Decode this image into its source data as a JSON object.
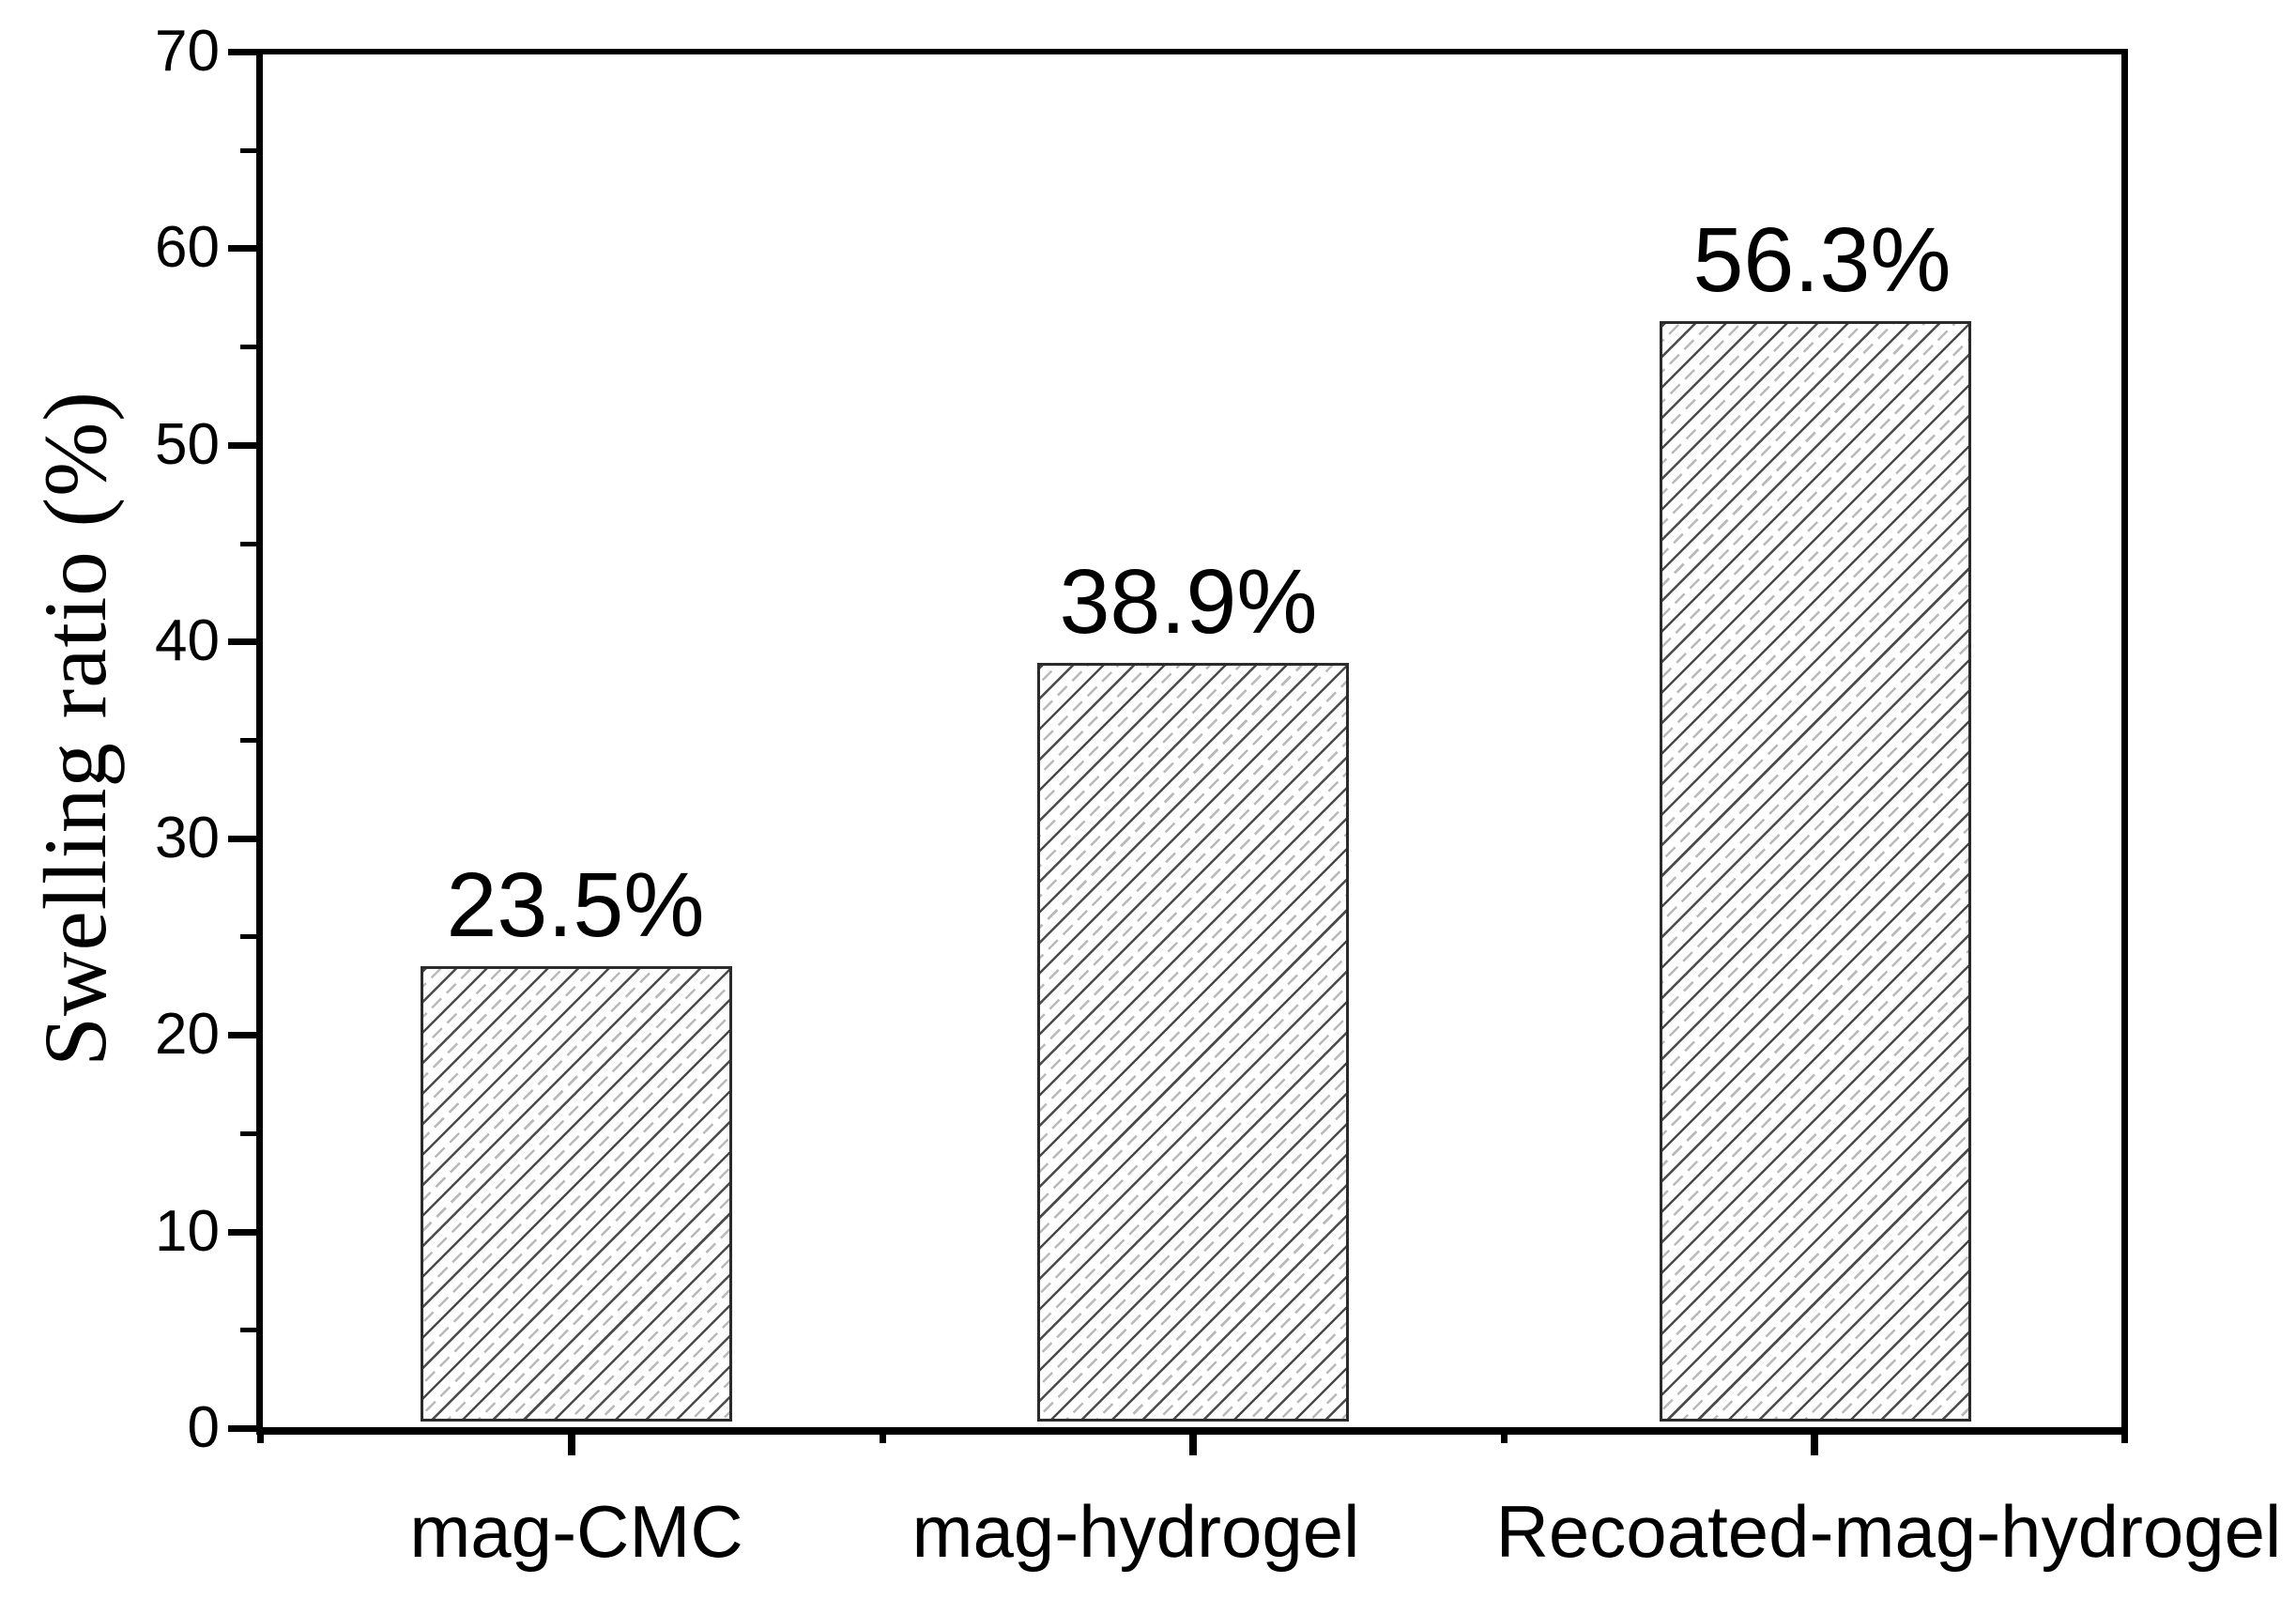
{
  "chart_data": {
    "type": "bar",
    "title": "",
    "categories": [
      "mag-CMC",
      "mag-hydrogel",
      "Recoated-mag-hydrogel"
    ],
    "values": [
      23.5,
      38.9,
      56.3
    ],
    "value_labels": [
      "23.5%",
      "38.9%",
      "56.3%"
    ],
    "ylabel": "Swelling ratio (%)",
    "xlabel": "",
    "ylim": [
      0,
      70
    ],
    "yticks": [
      0,
      10,
      20,
      30,
      40,
      50,
      60,
      70
    ],
    "ytick_labels": [
      "0",
      "10",
      "20",
      "30",
      "40",
      "50",
      "60",
      "70"
    ],
    "yticks_minor": [
      5,
      15,
      25,
      35,
      45,
      55,
      65
    ],
    "grid": false,
    "legend": false,
    "bar_hatch": "/",
    "bar_fill": "#ffffff",
    "hatch_dark_color": "#4a4a4a",
    "hatch_light_color": "#b9b9b9",
    "axis_color": "#000000",
    "background_color": "#ffffff"
  }
}
